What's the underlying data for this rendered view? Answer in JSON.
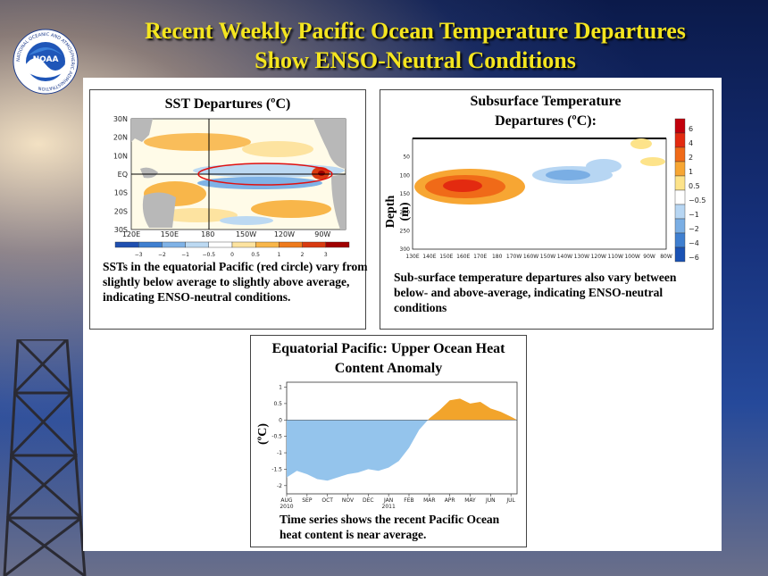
{
  "logo": {
    "text": "NOAA",
    "ring_text": "NATIONAL OCEANIC AND ATMOSPHERIC ADMINISTRATION"
  },
  "title": {
    "line1": "Recent Weekly Pacific Ocean Temperature Departures",
    "line2": "Show ENSO-Neutral Conditions"
  },
  "sst_panel": {
    "title": "SST Departures (ºC)",
    "lat_labels": [
      "30N",
      "20N",
      "10N",
      "EQ",
      "10S",
      "20S",
      "30S"
    ],
    "lon_labels": [
      "120E",
      "150E",
      "180",
      "150W",
      "120W",
      "90W"
    ],
    "colorbar_labels": [
      "−3",
      "−2",
      "−1",
      "−0.5",
      "0",
      "0.5",
      "1",
      "2",
      "3"
    ],
    "colorbar_colors": [
      "#1f4fb0",
      "#3f7fd0",
      "#7fb2e6",
      "#bcd9f2",
      "#ffffff",
      "#fde3a0",
      "#f8b64a",
      "#ee7a1c",
      "#d83a10",
      "#a00000"
    ],
    "caption": "SSTs  in the equatorial Pacific (red circle) vary from slightly below average to slightly above average, indicating ENSO-neutral conditions."
  },
  "subsurface_panel": {
    "title": "Subsurface Temperature Departures (ºC):",
    "ylabel": "Depth (m)",
    "depth_labels": [
      "50",
      "100",
      "150",
      "200",
      "250",
      "300"
    ],
    "lon_labels": [
      "130E",
      "140E",
      "150E",
      "160E",
      "170E",
      "180",
      "170W",
      "160W",
      "150W",
      "140W",
      "130W",
      "120W",
      "110W",
      "100W",
      "90W",
      "80W"
    ],
    "legend_labels": [
      "6",
      "4",
      "2",
      "1",
      "0.5",
      "−0.5",
      "−1",
      "−2",
      "−4",
      "−6"
    ],
    "legend_colors": [
      "#c2000c",
      "#e32a10",
      "#f06a18",
      "#f7a633",
      "#fde38a",
      "#ffffff",
      "#b7d6f3",
      "#7aaee4",
      "#3f7fd0",
      "#1a52b4"
    ],
    "caption": "Sub-surface temperature departures also vary between below- and above-average, indicating ENSO-neutral conditions"
  },
  "heat_panel": {
    "title": "Equatorial Pacific: Upper Ocean Heat Content Anomaly",
    "ylabel": "(ºC)",
    "caption": "Time series shows the recent Pacific Ocean heat content is near average."
  },
  "chart_data": {
    "type": "area",
    "title": "Equatorial Pacific: Upper Ocean Heat Content Anomaly",
    "xlabel": "",
    "ylabel": "(ºC)",
    "x_ticks": [
      "AUG 2010",
      "SEP",
      "OCT",
      "NOV",
      "DEC",
      "JAN 2011",
      "FEB",
      "MAR",
      "APR",
      "MAY",
      "JUN",
      "JUL"
    ],
    "y_ticks": [
      "1",
      "0.5",
      "0",
      "-0.5",
      "-1",
      "-1.5",
      "-2"
    ],
    "ylim": [
      -2.25,
      1.15
    ],
    "x": [
      0,
      0.5,
      1,
      1.5,
      2,
      2.5,
      3,
      3.5,
      4,
      4.5,
      5,
      5.5,
      6,
      6.5,
      7,
      7.5,
      8,
      8.5,
      9,
      9.5,
      10,
      10.5,
      11,
      11.3
    ],
    "values": [
      -1.75,
      -1.55,
      -1.65,
      -1.8,
      -1.85,
      -1.75,
      -1.65,
      -1.6,
      -1.5,
      -1.55,
      -1.45,
      -1.25,
      -0.85,
      -0.3,
      0.05,
      0.3,
      0.6,
      0.65,
      0.5,
      0.55,
      0.35,
      0.25,
      0.1,
      0.0
    ],
    "positive_color": "#f2a42b",
    "negative_color": "#94c4ec",
    "grid": false
  }
}
